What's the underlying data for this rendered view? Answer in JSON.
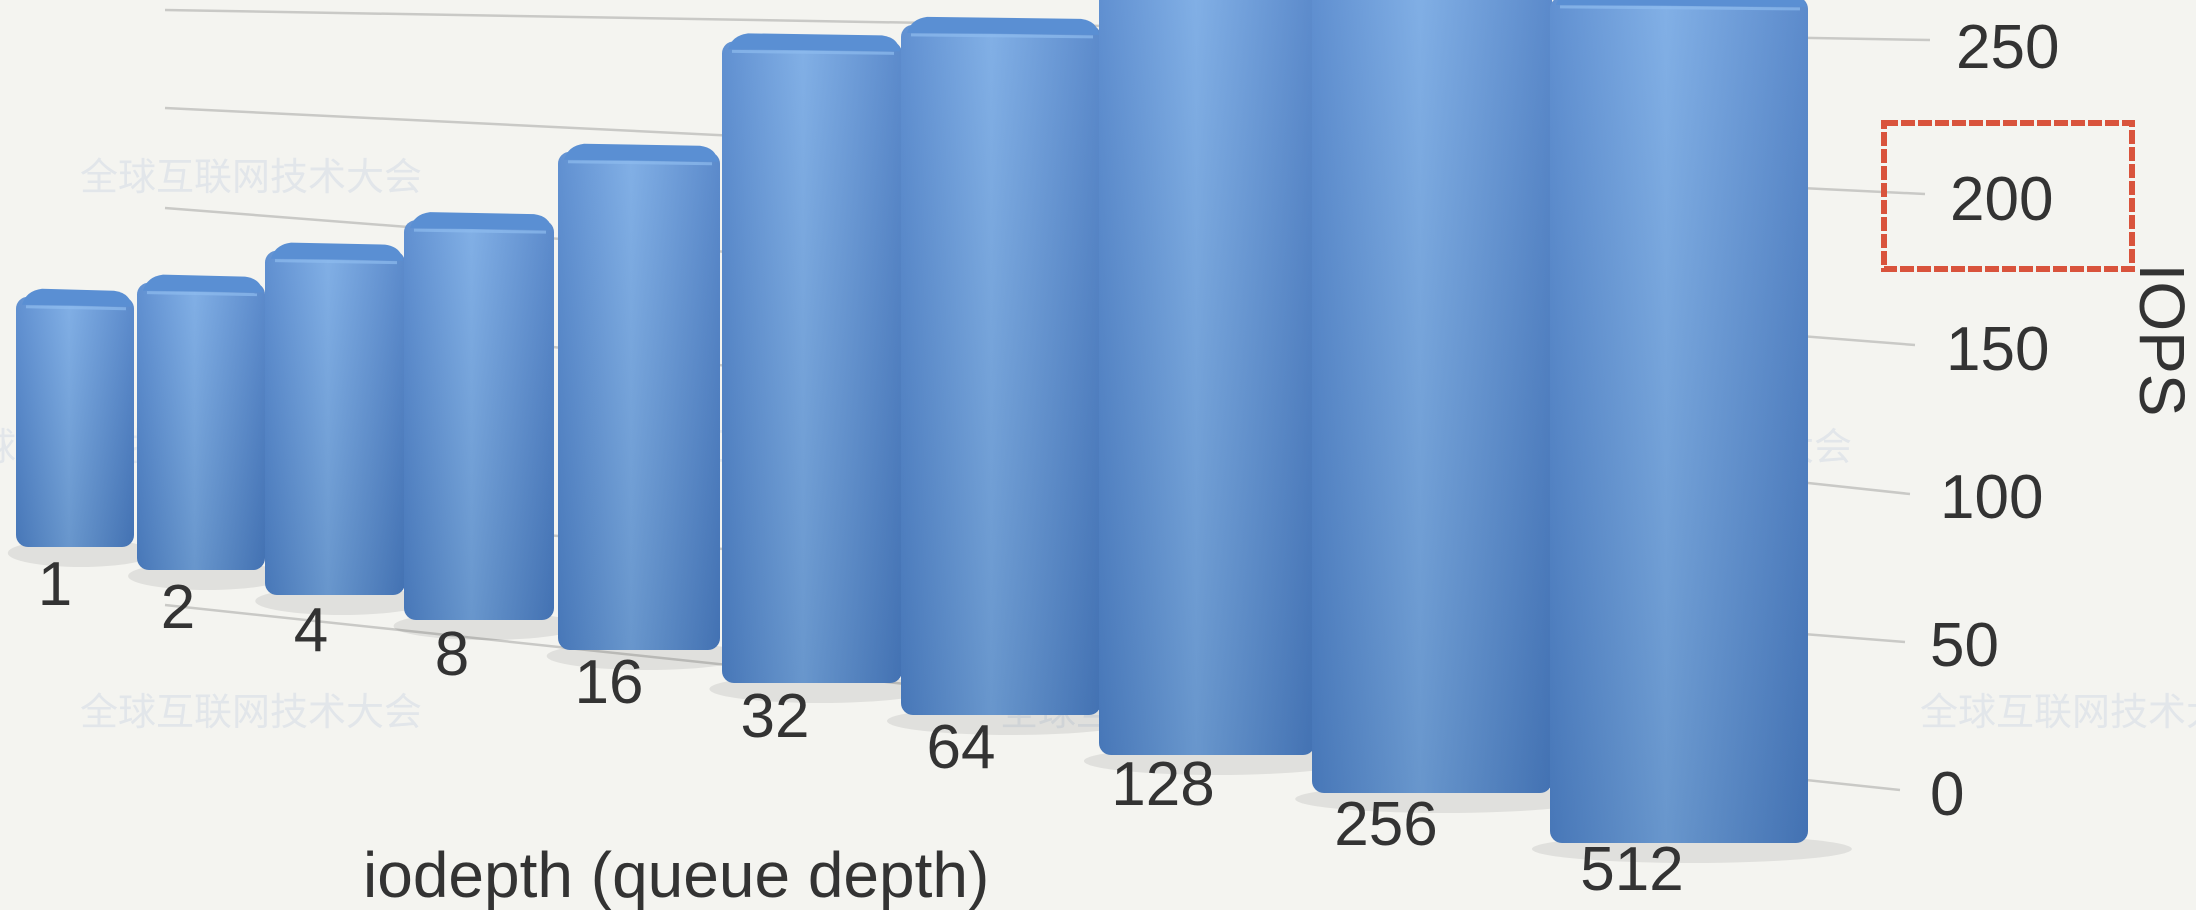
{
  "chart_data": {
    "type": "bar",
    "categories": [
      "1",
      "2",
      "4",
      "8",
      "16",
      "32",
      "64",
      "128",
      "256",
      "512"
    ],
    "values": [
      92,
      103,
      120,
      136,
      165,
      205,
      213,
      230,
      240,
      237
    ],
    "xlabel": "iodepth (queue depth)",
    "ylabel": "IOPS",
    "ylim": [
      0,
      250
    ],
    "yticks": [
      "0",
      "50",
      "100",
      "150",
      "200",
      "250"
    ],
    "grid": true,
    "bar_color": "#5b8fd6",
    "highlight": {
      "tick": "200",
      "color": "#d9533c"
    }
  },
  "watermark": {
    "text": "全球互联网技术大会"
  }
}
